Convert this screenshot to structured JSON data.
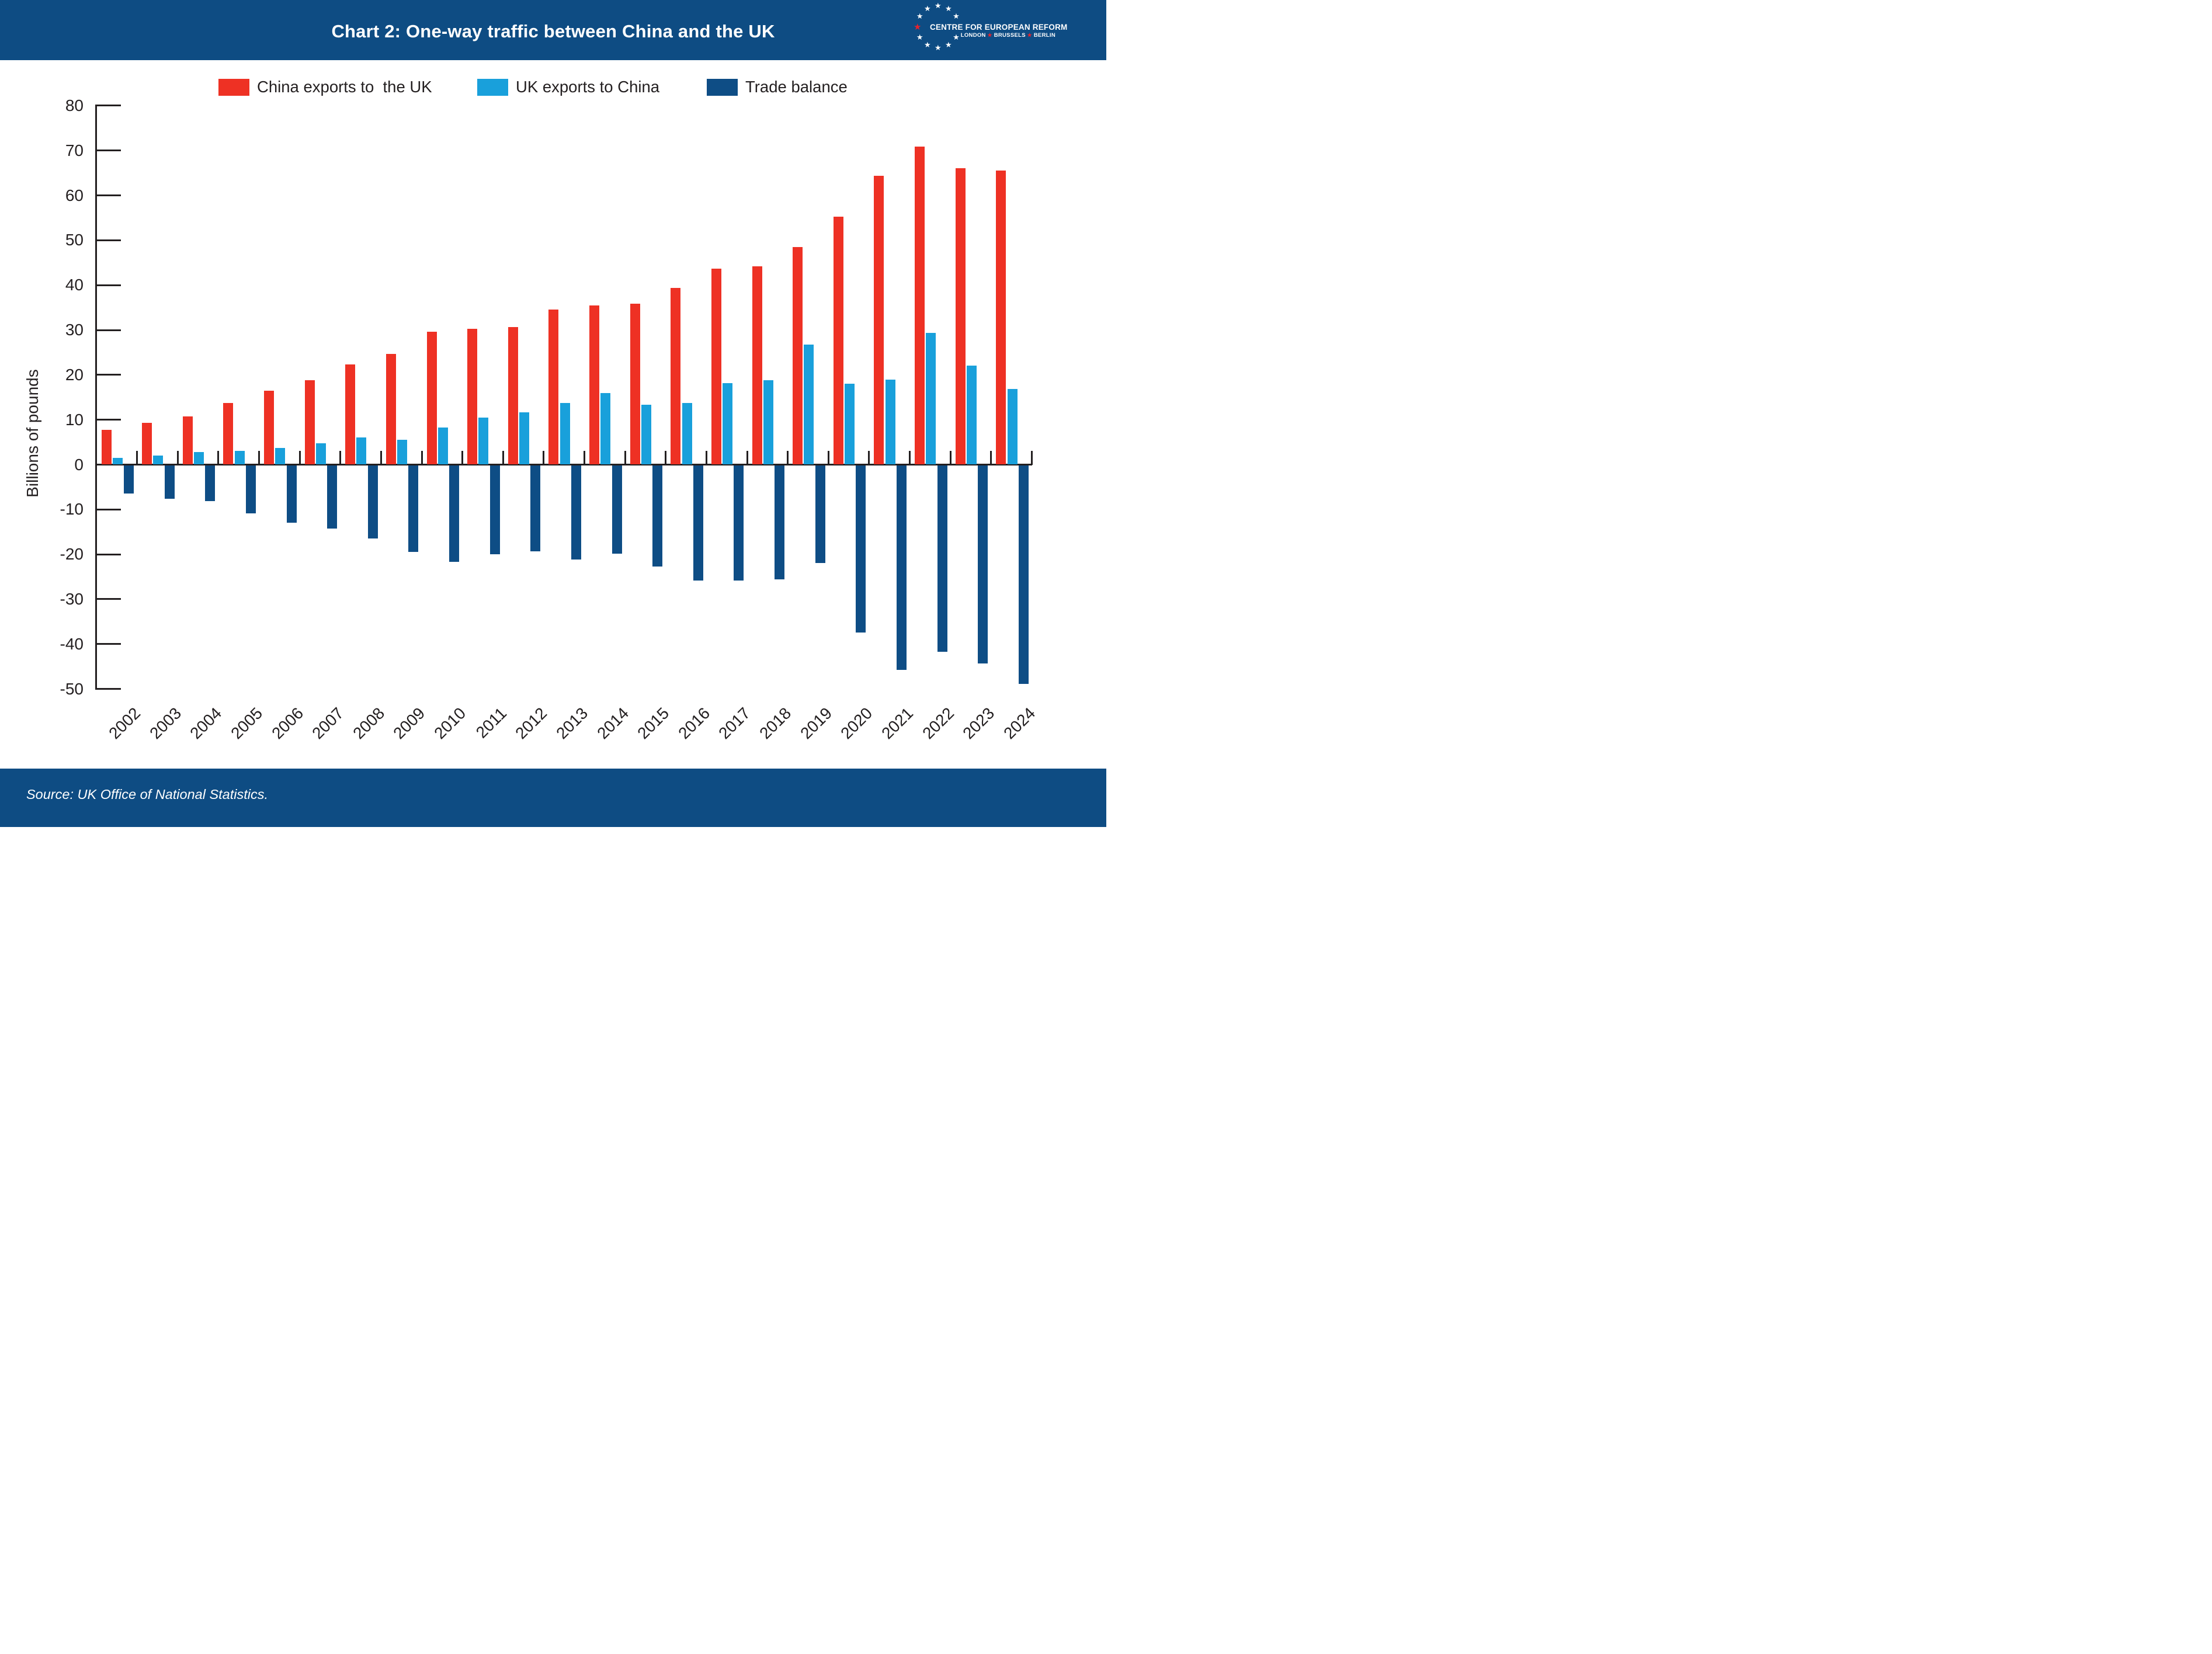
{
  "theme": {
    "band_navy": "#0e4c83",
    "text_dark": "#231f20",
    "title_color": "#ffffff"
  },
  "header": {
    "title": "Chart 2: One-way traffic between China and the UK"
  },
  "logo": {
    "line1": "CENTRE FOR EUROPEAN REFORM",
    "line2_words": [
      "LONDON",
      "BRUSSELS",
      "BERLIN"
    ],
    "star_glyph": "★",
    "white_star_color": "#ffffff",
    "red_star_color": "#e8212c"
  },
  "legend": {
    "items": [
      {
        "label": "China exports to  the UK",
        "color": "#ee3124"
      },
      {
        "label": "UK exports to China",
        "color": "#19a0db"
      },
      {
        "label": "Trade balance",
        "color": "#0e4d85"
      }
    ]
  },
  "chart_data": {
    "type": "bar",
    "title": "Chart 2: One-way traffic between China and the UK",
    "xlabel": "",
    "ylabel": "Billions of pounds",
    "ylim": [
      -50,
      80
    ],
    "ytick_step": 10,
    "grid": false,
    "legend_position": "top",
    "categories": [
      "2002",
      "2003",
      "2004",
      "2005",
      "2006",
      "2007",
      "2008",
      "2009",
      "2010",
      "2011",
      "2012",
      "2013",
      "2014",
      "2015",
      "2016",
      "2017",
      "2018",
      "2019",
      "2020",
      "2021",
      "2022",
      "2023",
      "2024"
    ],
    "series": [
      {
        "name": "China exports to  the UK",
        "color": "#ee3124",
        "values": [
          7.8,
          9.3,
          10.7,
          13.7,
          16.5,
          18.8,
          22.3,
          24.7,
          29.6,
          30.3,
          30.7,
          34.6,
          35.5,
          35.8,
          39.4,
          43.7,
          44.2,
          48.5,
          55.2,
          64.4,
          70.9,
          66.1,
          65.5
        ]
      },
      {
        "name": "UK exports to China",
        "color": "#19a0db",
        "values": [
          1.5,
          2.0,
          2.8,
          3.0,
          3.7,
          4.7,
          6.0,
          5.5,
          8.2,
          10.5,
          11.6,
          13.7,
          15.9,
          13.3,
          13.7,
          18.1,
          18.8,
          26.7,
          18.0,
          18.9,
          29.4,
          22.0,
          16.8
        ]
      },
      {
        "name": "Trade balance",
        "color": "#0e4d85",
        "values": [
          -6.3,
          -7.4,
          -7.9,
          -10.7,
          -12.8,
          -14.1,
          -16.3,
          -19.2,
          -21.5,
          -19.8,
          -19.1,
          -20.9,
          -19.6,
          -22.5,
          -25.7,
          -25.6,
          -25.4,
          -21.8,
          -37.2,
          -45.5,
          -41.5,
          -44.1,
          -48.7
        ]
      }
    ]
  },
  "footer": {
    "source": "Source: UK Office of National Statistics."
  }
}
